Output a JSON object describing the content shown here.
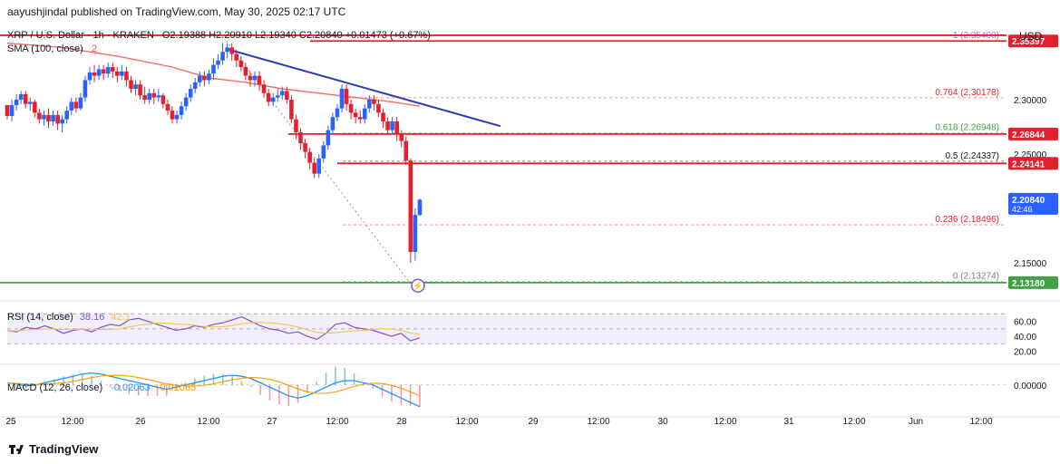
{
  "header": {
    "publisher": "aayushjindal published on TradingView.com, May 30, 2025 02:17 UTC"
  },
  "legend": {
    "symbol": "XRP / U.S. Dollar · 1h · KRAKEN",
    "ohlc": "O2.19388  H2.20910  L2.19340  C2.20840  +0.01473 (+0.67%)",
    "sma": "SMA (100, close)",
    "sma_value": "2",
    "rsi_label": "RSI (14, close)",
    "rsi_value": "38.16",
    "rsi_value2": "42.1",
    "macd_label": "MACD (12, 26, close)",
    "macd_value": "-0.02063",
    "macd_value2": "-0.01065"
  },
  "currency": "USD",
  "footer": {
    "brand": "TradingView"
  },
  "colors": {
    "up": "#2962ff",
    "down": "#e5202e",
    "sma": "#ef5350",
    "trend": "#2a3ab5",
    "support": "#43a047",
    "rsi": "#7e57c2",
    "rsi_ma": "#f7c34d",
    "macd": "#2196f3",
    "signal": "#ff9800"
  },
  "chart_data": {
    "type": "line",
    "title": "XRP / U.S. Dollar",
    "x_ticks": [
      "25",
      "12:00",
      "26",
      "12:00",
      "27",
      "12:00",
      "28",
      "12:00",
      "29",
      "12:00",
      "30",
      "12:00",
      "31",
      "12:00",
      "Jun",
      "12:00"
    ],
    "y_ticks": [
      "2.30000",
      "2.25000",
      "2.15000"
    ],
    "ylim": [
      2.12,
      2.37
    ],
    "price_labels": [
      {
        "text": "2.35397",
        "value": 2.35397,
        "color": "#e5202e"
      },
      {
        "text": "2.26844",
        "value": 2.26844,
        "color": "#e5202e"
      },
      {
        "text": "2.24141",
        "value": 2.24141,
        "color": "#e5202e"
      },
      {
        "text": "2.20840",
        "value": 2.2084,
        "color": "#2962ff",
        "sub": "42:46"
      },
      {
        "text": "2.13180",
        "value": 2.1318,
        "color": "#43a047"
      }
    ],
    "fib_levels": [
      {
        "label": "1 (2.35400)",
        "value": 2.354,
        "color": "#5b9bd5"
      },
      {
        "label": "0.764 (2.30178)",
        "value": 2.30178,
        "color": "#e5202e"
      },
      {
        "label": "0.618 (2.26948)",
        "value": 2.26948,
        "color": "#43a047"
      },
      {
        "label": "0.5 (2.24337)",
        "value": 2.24337,
        "color": "#131722"
      },
      {
        "label": "0.236 (2.18496)",
        "value": 2.18496,
        "color": "#e5202e"
      },
      {
        "label": "0 (2.13274)",
        "value": 2.13274,
        "color": "#787b86"
      }
    ],
    "resistance_lines": [
      2.35397,
      2.26844,
      2.24141
    ],
    "support_line": 2.1318,
    "trendline": [
      [
        24.2,
        2.346
      ],
      [
        36.0,
        2.269
      ]
    ],
    "fib_diagonal": [
      [
        23.9,
        2.354
      ],
      [
        43.8,
        2.133
      ]
    ],
    "candles": [
      [
        0.0,
        2.295,
        2.285,
        2.295,
        2.282
      ],
      [
        0.5,
        2.285,
        2.295,
        2.3,
        2.28
      ],
      [
        1.0,
        2.295,
        2.3,
        2.305,
        2.29
      ],
      [
        1.5,
        2.3,
        2.305,
        2.308,
        2.296
      ],
      [
        2.0,
        2.305,
        2.296,
        2.308,
        2.292
      ],
      [
        2.5,
        2.296,
        2.298,
        2.302,
        2.29
      ],
      [
        3.0,
        2.298,
        2.288,
        2.3,
        2.284
      ],
      [
        3.5,
        2.288,
        2.282,
        2.292,
        2.278
      ],
      [
        4.0,
        2.282,
        2.286,
        2.29,
        2.276
      ],
      [
        4.5,
        2.286,
        2.28,
        2.292,
        2.274
      ],
      [
        5.0,
        2.28,
        2.286,
        2.29,
        2.276
      ],
      [
        5.5,
        2.286,
        2.278,
        2.29,
        2.272
      ],
      [
        6.0,
        2.278,
        2.282,
        2.286,
        2.27
      ],
      [
        6.5,
        2.282,
        2.29,
        2.294,
        2.278
      ],
      [
        7.0,
        2.29,
        2.298,
        2.302,
        2.286
      ],
      [
        7.5,
        2.298,
        2.292,
        2.302,
        2.288
      ],
      [
        8.0,
        2.292,
        2.302,
        2.306,
        2.29
      ],
      [
        8.5,
        2.302,
        2.318,
        2.322,
        2.298
      ],
      [
        9.0,
        2.318,
        2.325,
        2.33,
        2.314
      ],
      [
        9.5,
        2.325,
        2.322,
        2.332,
        2.316
      ],
      [
        10.0,
        2.322,
        2.328,
        2.332,
        2.318
      ],
      [
        10.5,
        2.328,
        2.324,
        2.332,
        2.318
      ],
      [
        11.0,
        2.324,
        2.33,
        2.334,
        2.32
      ],
      [
        11.5,
        2.33,
        2.326,
        2.334,
        2.32
      ],
      [
        12.0,
        2.326,
        2.322,
        2.33,
        2.316
      ],
      [
        12.5,
        2.322,
        2.326,
        2.332,
        2.318
      ],
      [
        13.0,
        2.326,
        2.318,
        2.33,
        2.312
      ],
      [
        13.5,
        2.318,
        2.31,
        2.322,
        2.306
      ],
      [
        14.0,
        2.31,
        2.314,
        2.318,
        2.304
      ],
      [
        14.5,
        2.314,
        2.304,
        2.318,
        2.3
      ],
      [
        15.0,
        2.304,
        2.3,
        2.312,
        2.296
      ],
      [
        15.5,
        2.3,
        2.306,
        2.31,
        2.296
      ],
      [
        16.0,
        2.306,
        2.302,
        2.31,
        2.296
      ],
      [
        16.5,
        2.302,
        2.304,
        2.31,
        2.298
      ],
      [
        17.0,
        2.304,
        2.296,
        2.306,
        2.292
      ],
      [
        17.5,
        2.296,
        2.29,
        2.3,
        2.286
      ],
      [
        18.0,
        2.29,
        2.282,
        2.294,
        2.278
      ],
      [
        18.5,
        2.282,
        2.286,
        2.29,
        2.278
      ],
      [
        19.0,
        2.286,
        2.294,
        2.298,
        2.282
      ],
      [
        19.5,
        2.294,
        2.302,
        2.306,
        2.29
      ],
      [
        20.0,
        2.302,
        2.31,
        2.314,
        2.298
      ],
      [
        20.5,
        2.31,
        2.316,
        2.32,
        2.306
      ],
      [
        21.0,
        2.316,
        2.322,
        2.326,
        2.312
      ],
      [
        21.5,
        2.322,
        2.318,
        2.326,
        2.312
      ],
      [
        22.0,
        2.318,
        2.324,
        2.328,
        2.314
      ],
      [
        22.5,
        2.324,
        2.332,
        2.338,
        2.318
      ],
      [
        23.0,
        2.332,
        2.336,
        2.342,
        2.328
      ],
      [
        23.5,
        2.336,
        2.344,
        2.352,
        2.332
      ],
      [
        24.0,
        2.344,
        2.348,
        2.352,
        2.338
      ],
      [
        24.5,
        2.348,
        2.342,
        2.352,
        2.336
      ],
      [
        25.0,
        2.342,
        2.336,
        2.346,
        2.33
      ],
      [
        25.5,
        2.336,
        2.33,
        2.34,
        2.326
      ],
      [
        26.0,
        2.33,
        2.322,
        2.334,
        2.318
      ],
      [
        26.5,
        2.322,
        2.318,
        2.326,
        2.312
      ],
      [
        27.0,
        2.318,
        2.322,
        2.326,
        2.312
      ],
      [
        27.5,
        2.322,
        2.314,
        2.326,
        2.308
      ],
      [
        28.0,
        2.314,
        2.306,
        2.318,
        2.302
      ],
      [
        28.5,
        2.306,
        2.298,
        2.31,
        2.294
      ],
      [
        29.0,
        2.298,
        2.302,
        2.306,
        2.294
      ],
      [
        29.5,
        2.302,
        2.304,
        2.31,
        2.298
      ],
      [
        30.0,
        2.304,
        2.308,
        2.312,
        2.3
      ],
      [
        30.5,
        2.308,
        2.3,
        2.312,
        2.296
      ],
      [
        31.0,
        2.3,
        2.282,
        2.304,
        2.278
      ],
      [
        31.5,
        2.282,
        2.27,
        2.286,
        2.264
      ],
      [
        32.0,
        2.27,
        2.26,
        2.274,
        2.254
      ],
      [
        32.5,
        2.26,
        2.252,
        2.264,
        2.246
      ],
      [
        33.0,
        2.252,
        2.242,
        2.256,
        2.236
      ],
      [
        33.5,
        2.242,
        2.232,
        2.246,
        2.228
      ],
      [
        34.0,
        2.232,
        2.246,
        2.25,
        2.228
      ],
      [
        34.5,
        2.246,
        2.258,
        2.262,
        2.242
      ],
      [
        35.0,
        2.258,
        2.272,
        2.276,
        2.254
      ],
      [
        35.5,
        2.272,
        2.284,
        2.288,
        2.268
      ],
      [
        36.0,
        2.284,
        2.292,
        2.296,
        2.28
      ],
      [
        36.5,
        2.292,
        2.31,
        2.314,
        2.288
      ],
      [
        37.0,
        2.31,
        2.296,
        2.314,
        2.29
      ],
      [
        37.5,
        2.296,
        2.288,
        2.3,
        2.282
      ],
      [
        38.0,
        2.288,
        2.284,
        2.292,
        2.278
      ],
      [
        38.5,
        2.284,
        2.282,
        2.29,
        2.278
      ],
      [
        39.0,
        2.282,
        2.292,
        2.296,
        2.278
      ],
      [
        39.5,
        2.292,
        2.3,
        2.304,
        2.288
      ],
      [
        40.0,
        2.3,
        2.296,
        2.304,
        2.29
      ],
      [
        40.5,
        2.296,
        2.288,
        2.3,
        2.284
      ],
      [
        41.0,
        2.288,
        2.28,
        2.292,
        2.274
      ],
      [
        41.5,
        2.28,
        2.272,
        2.284,
        2.268
      ],
      [
        42.0,
        2.272,
        2.28,
        2.284,
        2.268
      ],
      [
        42.5,
        2.28,
        2.268,
        2.284,
        2.262
      ],
      [
        43.0,
        2.268,
        2.262,
        2.272,
        2.256
      ],
      [
        43.5,
        2.262,
        2.244,
        2.266,
        2.24
      ],
      [
        44.0,
        2.244,
        2.16,
        2.246,
        2.15
      ],
      [
        44.5,
        2.16,
        2.194,
        2.2,
        2.152
      ],
      [
        45.0,
        2.194,
        2.208,
        2.209,
        2.193
      ]
    ],
    "sma_points": [
      [
        0,
        2.352
      ],
      [
        6,
        2.348
      ],
      [
        12,
        2.34
      ],
      [
        18,
        2.33
      ],
      [
        22,
        2.32
      ],
      [
        26,
        2.316
      ],
      [
        30,
        2.31
      ],
      [
        34,
        2.306
      ],
      [
        38,
        2.302
      ],
      [
        42,
        2.298
      ],
      [
        45,
        2.294
      ]
    ],
    "rsi": [
      48,
      46,
      52,
      50,
      54,
      50,
      44,
      48,
      50,
      46,
      52,
      56,
      54,
      62,
      64,
      60,
      56,
      52,
      48,
      50,
      54,
      52,
      56,
      58,
      62,
      66,
      60,
      54,
      50,
      48,
      44,
      46,
      40,
      36,
      44,
      56,
      58,
      52,
      50,
      48,
      44,
      40,
      44,
      34,
      38
    ],
    "macd": [
      0.002,
      0.001,
      -0.001,
      0.0,
      0.002,
      0.004,
      0.006,
      0.008,
      0.01,
      0.011,
      0.01,
      0.008,
      0.006,
      0.004,
      0.002,
      0.0,
      -0.002,
      -0.004,
      -0.002,
      0.0,
      0.002,
      0.004,
      0.006,
      0.008,
      0.009,
      0.008,
      0.006,
      0.002,
      -0.002,
      -0.006,
      -0.01,
      -0.012,
      -0.01,
      -0.006,
      -0.002,
      0.002,
      0.004,
      0.004,
      0.002,
      0.0,
      -0.004,
      -0.008,
      -0.012,
      -0.016,
      -0.02
    ]
  }
}
